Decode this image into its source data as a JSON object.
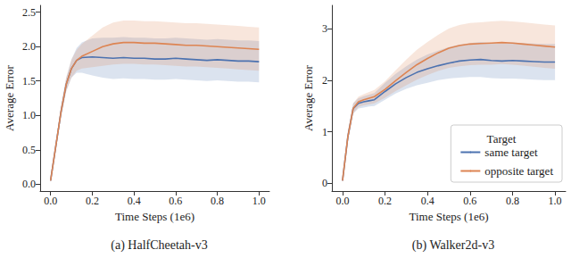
{
  "chart_data": [
    {
      "type": "line",
      "title": "(a) HalfCheetah-v3",
      "x_label": "Time Steps (1e6)",
      "y_label": "Average Error",
      "x": [
        0,
        0.025,
        0.05,
        0.075,
        0.1,
        0.125,
        0.15,
        0.2,
        0.25,
        0.3,
        0.35,
        0.4,
        0.45,
        0.5,
        0.55,
        0.6,
        0.65,
        0.7,
        0.75,
        0.8,
        0.85,
        0.9,
        0.95,
        1.0
      ],
      "xlim": [
        -0.05,
        1.05
      ],
      "xticks": [
        {
          "value": 0,
          "label": "0.0"
        },
        0.2,
        0.4,
        0.6,
        0.8,
        {
          "value": 1,
          "label": "1.0"
        }
      ],
      "ylim": [
        -0.1,
        2.6
      ],
      "yticks": [
        {
          "value": 0,
          "label": "0.0"
        },
        0.5,
        {
          "value": 1,
          "label": "1.0"
        },
        1.5,
        {
          "value": 2,
          "label": "2.0"
        },
        2.5
      ],
      "grid": false,
      "series": [
        {
          "name": "same target",
          "color": "#4c72b0",
          "values": [
            0.05,
            0.55,
            1.05,
            1.45,
            1.68,
            1.8,
            1.84,
            1.85,
            1.84,
            1.83,
            1.84,
            1.83,
            1.83,
            1.82,
            1.82,
            1.83,
            1.82,
            1.81,
            1.8,
            1.81,
            1.8,
            1.79,
            1.79,
            1.78
          ],
          "lower": [
            0.03,
            0.5,
            0.97,
            1.35,
            1.55,
            1.62,
            1.62,
            1.58,
            1.55,
            1.53,
            1.54,
            1.53,
            1.53,
            1.52,
            1.52,
            1.53,
            1.52,
            1.51,
            1.5,
            1.51,
            1.5,
            1.49,
            1.49,
            1.48
          ],
          "upper": [
            0.07,
            0.6,
            1.13,
            1.55,
            1.81,
            1.98,
            2.06,
            2.12,
            2.13,
            2.13,
            2.14,
            2.13,
            2.13,
            2.12,
            2.12,
            2.13,
            2.12,
            2.11,
            2.1,
            2.11,
            2.1,
            2.09,
            2.09,
            2.08
          ]
        },
        {
          "name": "opposite target",
          "color": "#dd8452",
          "values": [
            0.05,
            0.55,
            1.05,
            1.45,
            1.68,
            1.8,
            1.86,
            1.93,
            2.0,
            2.04,
            2.06,
            2.06,
            2.05,
            2.05,
            2.04,
            2.03,
            2.02,
            2.02,
            2.01,
            2.0,
            1.99,
            1.98,
            1.97,
            1.96
          ],
          "lower": [
            0.03,
            0.5,
            0.97,
            1.35,
            1.55,
            1.65,
            1.68,
            1.7,
            1.72,
            1.74,
            1.75,
            1.75,
            1.74,
            1.74,
            1.73,
            1.72,
            1.71,
            1.71,
            1.7,
            1.69,
            1.68,
            1.67,
            1.66,
            1.65
          ],
          "upper": [
            0.07,
            0.6,
            1.13,
            1.55,
            1.81,
            1.95,
            2.04,
            2.16,
            2.28,
            2.35,
            2.38,
            2.38,
            2.37,
            2.37,
            2.36,
            2.35,
            2.34,
            2.34,
            2.33,
            2.32,
            2.31,
            2.3,
            2.29,
            2.28
          ]
        }
      ]
    },
    {
      "type": "line",
      "title": "(b) Walker2d-v3",
      "x_label": "Time Steps (1e6)",
      "y_label": "Average Error",
      "x": [
        0,
        0.025,
        0.05,
        0.075,
        0.1,
        0.125,
        0.15,
        0.2,
        0.25,
        0.3,
        0.35,
        0.4,
        0.45,
        0.5,
        0.55,
        0.6,
        0.65,
        0.7,
        0.75,
        0.8,
        0.85,
        0.9,
        0.95,
        1.0
      ],
      "xlim": [
        -0.05,
        1.05
      ],
      "xticks": [
        {
          "value": 0,
          "label": "0.0"
        },
        0.2,
        0.4,
        0.6,
        0.8,
        {
          "value": 1,
          "label": "1.0"
        }
      ],
      "ylim": [
        -0.15,
        3.45
      ],
      "yticks": [
        0,
        1,
        2,
        3
      ],
      "grid": false,
      "legend": "lower right",
      "legend_title": "Target",
      "series": [
        {
          "name": "same target",
          "color": "#4c72b0",
          "values": [
            0.05,
            0.9,
            1.45,
            1.55,
            1.58,
            1.6,
            1.62,
            1.78,
            1.93,
            2.05,
            2.15,
            2.22,
            2.28,
            2.33,
            2.37,
            2.39,
            2.4,
            2.38,
            2.37,
            2.38,
            2.37,
            2.36,
            2.35,
            2.35
          ],
          "lower": [
            0.03,
            0.8,
            1.35,
            1.45,
            1.47,
            1.49,
            1.5,
            1.62,
            1.74,
            1.83,
            1.9,
            1.95,
            2.0,
            2.03,
            2.05,
            2.06,
            2.06,
            2.04,
            2.03,
            2.03,
            2.02,
            2.01,
            2.0,
            2.0
          ],
          "upper": [
            0.07,
            1.0,
            1.55,
            1.65,
            1.69,
            1.72,
            1.75,
            1.95,
            2.12,
            2.27,
            2.4,
            2.5,
            2.57,
            2.64,
            2.69,
            2.72,
            2.74,
            2.72,
            2.71,
            2.73,
            2.72,
            2.71,
            2.7,
            2.7
          ]
        },
        {
          "name": "opposite target",
          "color": "#dd8452",
          "values": [
            0.05,
            0.9,
            1.45,
            1.58,
            1.62,
            1.65,
            1.68,
            1.82,
            1.99,
            2.15,
            2.3,
            2.42,
            2.53,
            2.62,
            2.67,
            2.7,
            2.71,
            2.72,
            2.73,
            2.72,
            2.7,
            2.68,
            2.66,
            2.64
          ],
          "lower": [
            0.03,
            0.8,
            1.35,
            1.48,
            1.51,
            1.53,
            1.55,
            1.66,
            1.79,
            1.9,
            2.01,
            2.1,
            2.18,
            2.24,
            2.27,
            2.29,
            2.3,
            2.3,
            2.31,
            2.3,
            2.28,
            2.26,
            2.24,
            2.22
          ],
          "upper": [
            0.07,
            1.0,
            1.55,
            1.68,
            1.73,
            1.77,
            1.81,
            1.98,
            2.19,
            2.4,
            2.59,
            2.74,
            2.88,
            3.0,
            3.07,
            3.11,
            3.12,
            3.14,
            3.15,
            3.14,
            3.12,
            3.1,
            3.08,
            3.06
          ]
        }
      ]
    }
  ]
}
